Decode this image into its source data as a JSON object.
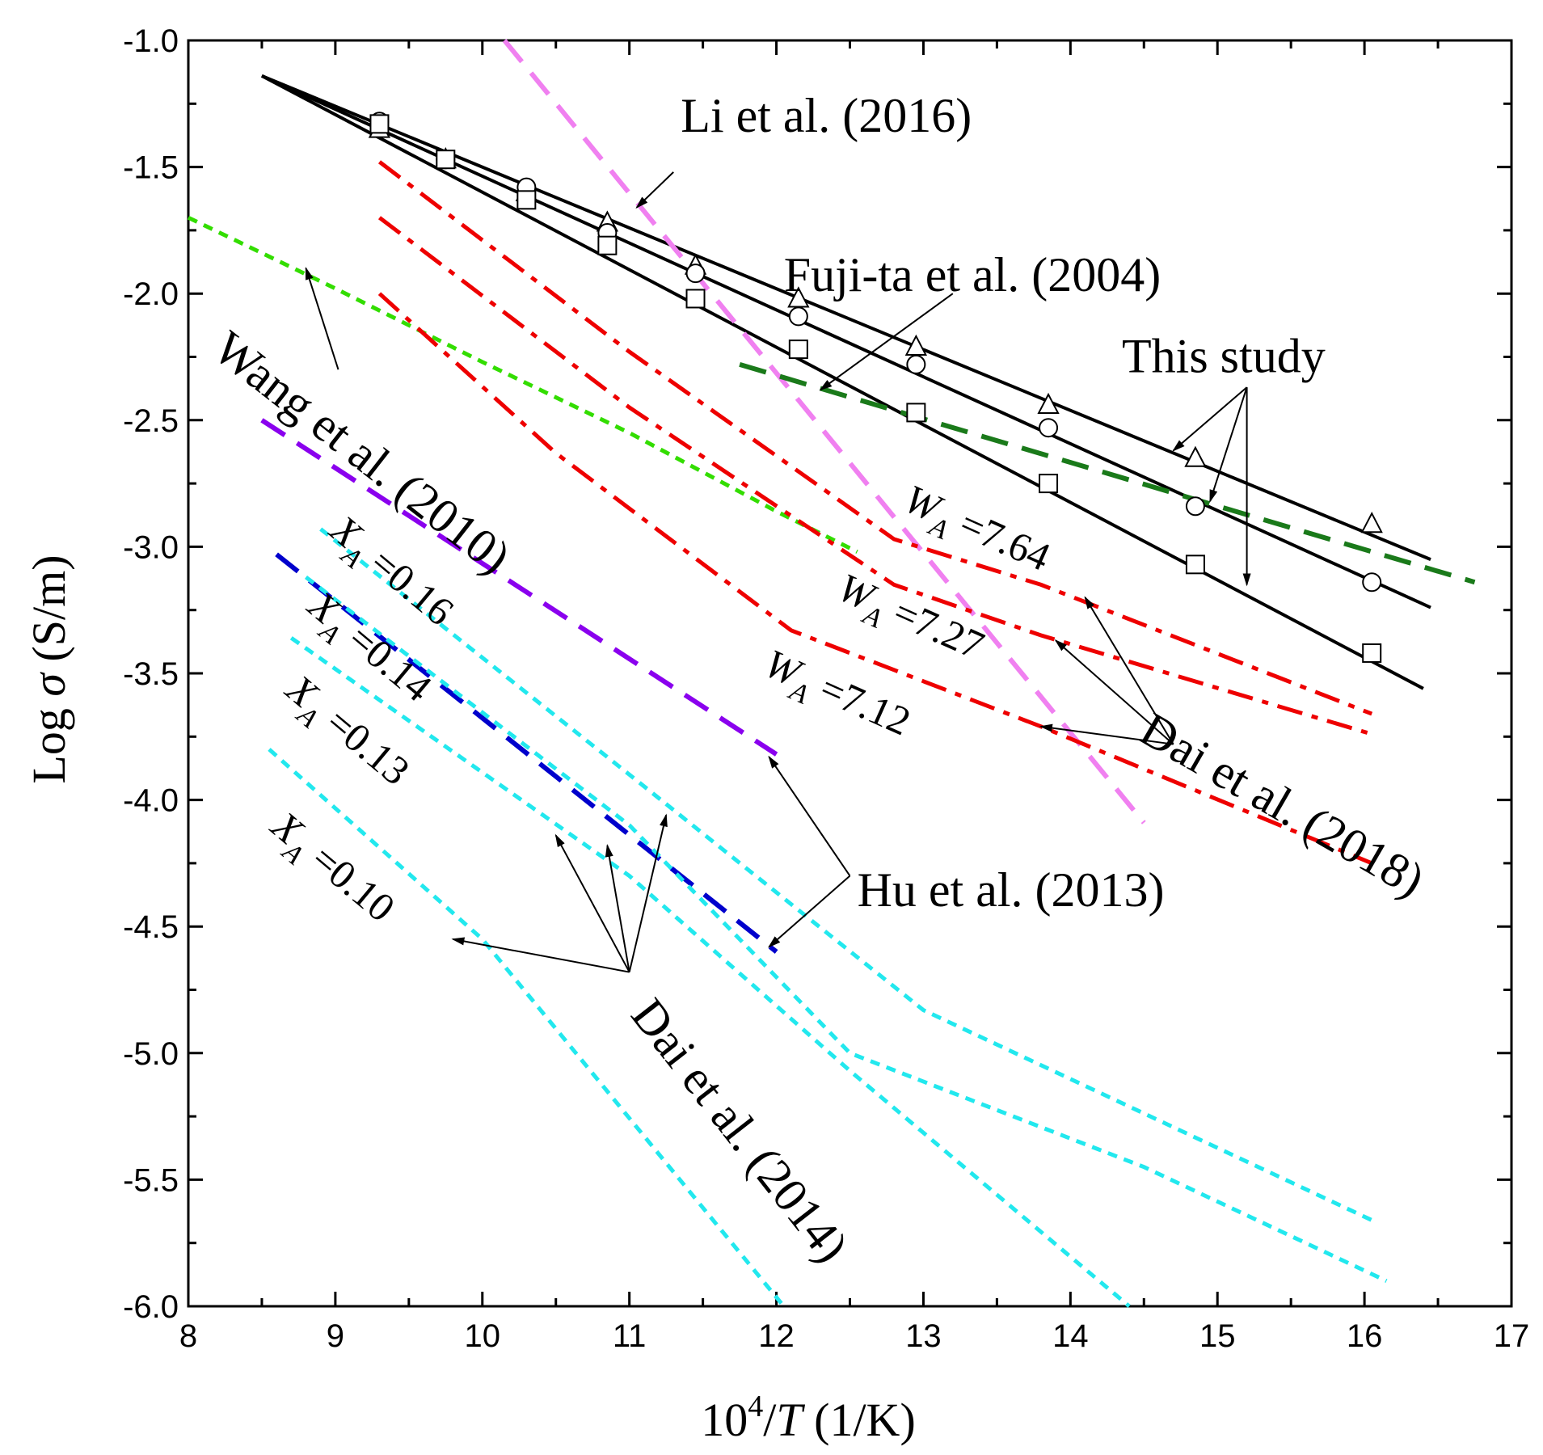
{
  "chart_data": {
    "type": "line",
    "xlabel": "10^4/T (1/K)",
    "xlabel_parts": {
      "prefix": "10",
      "sup": "4",
      "slash": "/",
      "var": "T",
      "unit": " (1/K)"
    },
    "ylabel": "Log σ  (S/m)",
    "ylabel_parts": {
      "prefix": "Log ",
      "var": "σ",
      "unit": "  (S/m)"
    },
    "xlim": [
      8,
      17
    ],
    "ylim": [
      -6.0,
      -1.0
    ],
    "xticks": [
      8,
      9,
      10,
      11,
      12,
      13,
      14,
      15,
      16,
      17
    ],
    "yticks": [
      -1.0,
      -1.5,
      -2.0,
      -2.5,
      -3.0,
      -3.5,
      -4.0,
      -4.5,
      -5.0,
      -5.5,
      -6.0
    ],
    "xtick_labels": [
      "8",
      "9",
      "10",
      "11",
      "12",
      "13",
      "14",
      "15",
      "16",
      "17"
    ],
    "ytick_labels": [
      "-1.0",
      "-1.5",
      "-2.0",
      "-2.5",
      "-3.0",
      "-3.5",
      "-4.0",
      "-4.5",
      "-5.0",
      "-5.5",
      "-6.0"
    ],
    "grid": false,
    "series": [
      {
        "name": "This study (triangles)",
        "color": "#000000",
        "style": "solid",
        "points": [
          [
            8.5,
            -1.14
          ],
          [
            16.45,
            -3.05
          ]
        ]
      },
      {
        "name": "This study (circles)",
        "color": "#000000",
        "style": "solid",
        "points": [
          [
            8.5,
            -1.14
          ],
          [
            16.45,
            -3.24
          ]
        ]
      },
      {
        "name": "This study (squares)",
        "color": "#000000",
        "style": "solid",
        "points": [
          [
            8.5,
            -1.14
          ],
          [
            16.4,
            -3.56
          ]
        ]
      },
      {
        "name": "Li et al. (2016)",
        "color": "#f080f0",
        "style": "dash",
        "points": [
          [
            10.15,
            -1.0
          ],
          [
            14.5,
            -4.09
          ]
        ]
      },
      {
        "name": "Fuji-ta et al. (2004)",
        "color": "#1a7a1a",
        "style": "dash",
        "points": [
          [
            11.75,
            -2.28
          ],
          [
            16.75,
            -3.14
          ]
        ]
      },
      {
        "name": "Wang et al. (2010)",
        "color": "#33dd00",
        "style": "dot",
        "points": [
          [
            8.0,
            -1.7
          ],
          [
            9.0,
            -1.98
          ],
          [
            10.0,
            -2.27
          ],
          [
            11.0,
            -2.55
          ],
          [
            12.0,
            -2.86
          ],
          [
            12.55,
            -3.02
          ]
        ]
      },
      {
        "name": "Dai et al. (2018) W_A=7.64",
        "color": "#ee0000",
        "style": "dashdot",
        "points": [
          [
            9.3,
            -1.48
          ],
          [
            11.0,
            -2.23
          ],
          [
            12.8,
            -2.97
          ],
          [
            13.8,
            -3.15
          ],
          [
            16.05,
            -3.66
          ]
        ]
      },
      {
        "name": "Dai et al. (2018) W_A=7.27",
        "color": "#ee0000",
        "style": "dashdot",
        "points": [
          [
            9.3,
            -1.7
          ],
          [
            11.0,
            -2.45
          ],
          [
            12.8,
            -3.15
          ],
          [
            13.8,
            -3.35
          ],
          [
            16.05,
            -3.74
          ]
        ]
      },
      {
        "name": "Dai et al. (2018) W_A=7.12",
        "color": "#ee0000",
        "style": "dashdot",
        "points": [
          [
            9.3,
            -2.0
          ],
          [
            10.5,
            -2.63
          ],
          [
            12.1,
            -3.33
          ],
          [
            13.8,
            -3.71
          ],
          [
            16.05,
            -4.25
          ]
        ]
      },
      {
        "name": "Hu et al. (2013) upper",
        "color": "#8a00ee",
        "style": "dash",
        "points": [
          [
            8.5,
            -2.5
          ],
          [
            12.0,
            -3.82
          ]
        ]
      },
      {
        "name": "Hu et al. (2013) lower",
        "color": "#0000cc",
        "style": "dash",
        "points": [
          [
            8.6,
            -3.03
          ],
          [
            12.0,
            -4.6
          ]
        ]
      },
      {
        "name": "Dai et al. (2014) X_A=0.16",
        "color": "#22e8ee",
        "style": "dot",
        "points": [
          [
            8.9,
            -2.93
          ],
          [
            11.0,
            -3.9
          ],
          [
            13.0,
            -4.83
          ],
          [
            16.05,
            -5.66
          ]
        ]
      },
      {
        "name": "Dai et al. (2014) X_A=0.14",
        "color": "#22e8ee",
        "style": "dot",
        "points": [
          [
            8.8,
            -3.12
          ],
          [
            11.0,
            -4.1
          ],
          [
            12.5,
            -5.0
          ],
          [
            14.5,
            -5.45
          ],
          [
            16.15,
            -5.9
          ]
        ]
      },
      {
        "name": "Dai et al. (2014) X_A=0.13",
        "color": "#22e8ee",
        "style": "dot",
        "points": [
          [
            8.7,
            -3.36
          ],
          [
            11.0,
            -4.3
          ],
          [
            12.5,
            -5.07
          ],
          [
            14.4,
            -6.0
          ]
        ]
      },
      {
        "name": "Dai et al. (2014) X_A=0.10",
        "color": "#22e8ee",
        "style": "dot",
        "points": [
          [
            8.55,
            -3.8
          ],
          [
            10.0,
            -4.55
          ],
          [
            12.05,
            -6.0
          ]
        ]
      }
    ],
    "markers": {
      "triangles": [
        [
          9.3,
          -1.35
        ],
        [
          9.75,
          -1.47
        ],
        [
          10.3,
          -1.6
        ],
        [
          10.85,
          -1.72
        ],
        [
          11.45,
          -1.89
        ],
        [
          12.15,
          -2.02
        ],
        [
          12.95,
          -2.21
        ],
        [
          13.85,
          -2.44
        ],
        [
          14.85,
          -2.65
        ],
        [
          16.05,
          -2.91
        ]
      ],
      "circles": [
        [
          9.3,
          -1.32
        ],
        [
          9.75,
          -1.47
        ],
        [
          10.3,
          -1.58
        ],
        [
          10.85,
          -1.76
        ],
        [
          11.45,
          -1.92
        ],
        [
          12.15,
          -2.09
        ],
        [
          12.95,
          -2.28
        ],
        [
          13.85,
          -2.53
        ],
        [
          14.85,
          -2.84
        ],
        [
          16.05,
          -3.14
        ]
      ],
      "squares": [
        [
          9.3,
          -1.33
        ],
        [
          9.75,
          -1.47
        ],
        [
          10.3,
          -1.63
        ],
        [
          10.85,
          -1.81
        ],
        [
          11.45,
          -2.02
        ],
        [
          12.15,
          -2.22
        ],
        [
          12.95,
          -2.47
        ],
        [
          13.85,
          -2.75
        ],
        [
          14.85,
          -3.07
        ],
        [
          16.05,
          -3.42
        ]
      ]
    },
    "annotations": [
      {
        "id": "li",
        "text": "Li et al. (2016)",
        "size": 60,
        "rotate": 0,
        "at": [
          11.35,
          -1.36
        ],
        "arrows": [
          {
            "from": [
              11.3,
              -1.52
            ],
            "to": [
              11.05,
              -1.66
            ]
          }
        ]
      },
      {
        "id": "fujita",
        "text": "Fuji-ta et al. (2004)",
        "size": 60,
        "rotate": 0,
        "at": [
          12.05,
          -1.99
        ],
        "arrows": [
          {
            "from": [
              13.2,
              -2.0
            ],
            "to": [
              12.3,
              -2.38
            ]
          }
        ]
      },
      {
        "id": "thisstudy",
        "text": "This study",
        "size": 60,
        "rotate": 0,
        "at": [
          14.35,
          -2.31
        ],
        "arrows": [
          {
            "from": [
              15.2,
              -2.37
            ],
            "to": [
              14.7,
              -2.62
            ]
          },
          {
            "from": [
              15.2,
              -2.37
            ],
            "to": [
              14.95,
              -2.82
            ]
          },
          {
            "from": [
              15.2,
              -2.37
            ],
            "to": [
              15.2,
              -3.15
            ]
          }
        ]
      },
      {
        "id": "wang",
        "text": "Wang et al. (2010)",
        "size": 60,
        "rotate": 38,
        "at": [
          8.15,
          -2.24
        ],
        "arrows": [
          {
            "from": [
              9.02,
              -2.3
            ],
            "to": [
              8.8,
              -1.9
            ]
          }
        ]
      },
      {
        "id": "wa764",
        "text": "W_A =7.64",
        "parts": [
          "W",
          "A",
          " =7.64"
        ],
        "size": 50,
        "rotate": 24,
        "at": [
          12.85,
          -2.85
        ],
        "arrows": []
      },
      {
        "id": "wa727",
        "text": "W_A =7.27",
        "parts": [
          "W",
          "A",
          " =7.27"
        ],
        "size": 50,
        "rotate": 24,
        "at": [
          12.4,
          -3.2
        ],
        "arrows": []
      },
      {
        "id": "wa712",
        "text": "W_A =7.12",
        "parts": [
          "W",
          "A",
          " =7.12"
        ],
        "size": 50,
        "rotate": 24,
        "at": [
          11.9,
          -3.5
        ],
        "arrows": []
      },
      {
        "id": "dai2018",
        "text": "Dai et al. (2018)",
        "size": 60,
        "rotate": 30,
        "at": [
          14.45,
          -3.76
        ],
        "arrows": [
          {
            "from": [
              14.7,
              -3.78
            ],
            "to": [
              14.1,
              -3.2
            ]
          },
          {
            "from": [
              14.7,
              -3.78
            ],
            "to": [
              13.9,
              -3.37
            ]
          },
          {
            "from": [
              14.7,
              -3.78
            ],
            "to": [
              13.8,
              -3.71
            ]
          }
        ]
      },
      {
        "id": "xa016",
        "text": "X_A =0.16",
        "parts": [
          "X",
          "A",
          " =0.16"
        ],
        "size": 50,
        "rotate": 40,
        "at": [
          8.95,
          -2.95
        ],
        "arrows": []
      },
      {
        "id": "xa014",
        "text": "X_A =0.14",
        "parts": [
          "X",
          "A",
          " =0.14"
        ],
        "size": 50,
        "rotate": 40,
        "at": [
          8.8,
          -3.25
        ],
        "arrows": []
      },
      {
        "id": "xa013",
        "text": "X_A =0.13",
        "parts": [
          "X",
          "A",
          " =0.13"
        ],
        "size": 50,
        "rotate": 40,
        "at": [
          8.65,
          -3.58
        ],
        "arrows": []
      },
      {
        "id": "xa010",
        "text": "X_A =0.10",
        "parts": [
          "X",
          "A",
          " =0.10"
        ],
        "size": 50,
        "rotate": 40,
        "at": [
          8.55,
          -4.12
        ],
        "arrows": []
      },
      {
        "id": "hu",
        "text": "Hu et al. (2013)",
        "size": 60,
        "rotate": 0,
        "at": [
          12.55,
          -4.42
        ],
        "arrows": [
          {
            "from": [
              12.5,
              -4.3
            ],
            "to": [
              11.95,
              -3.83
            ]
          },
          {
            "from": [
              12.5,
              -4.3
            ],
            "to": [
              11.95,
              -4.58
            ]
          }
        ]
      },
      {
        "id": "dai2014",
        "text": "Dai et al. (2014)",
        "size": 60,
        "rotate": 52,
        "at": [
          11.0,
          -4.85
        ],
        "arrows": [
          {
            "from": [
              11.0,
              -4.68
            ],
            "to": [
              9.8,
              -4.55
            ]
          },
          {
            "from": [
              11.0,
              -4.68
            ],
            "to": [
              10.5,
              -4.14
            ]
          },
          {
            "from": [
              11.0,
              -4.68
            ],
            "to": [
              10.85,
              -4.18
            ]
          },
          {
            "from": [
              11.0,
              -4.68
            ],
            "to": [
              11.25,
              -4.06
            ]
          }
        ]
      }
    ]
  }
}
